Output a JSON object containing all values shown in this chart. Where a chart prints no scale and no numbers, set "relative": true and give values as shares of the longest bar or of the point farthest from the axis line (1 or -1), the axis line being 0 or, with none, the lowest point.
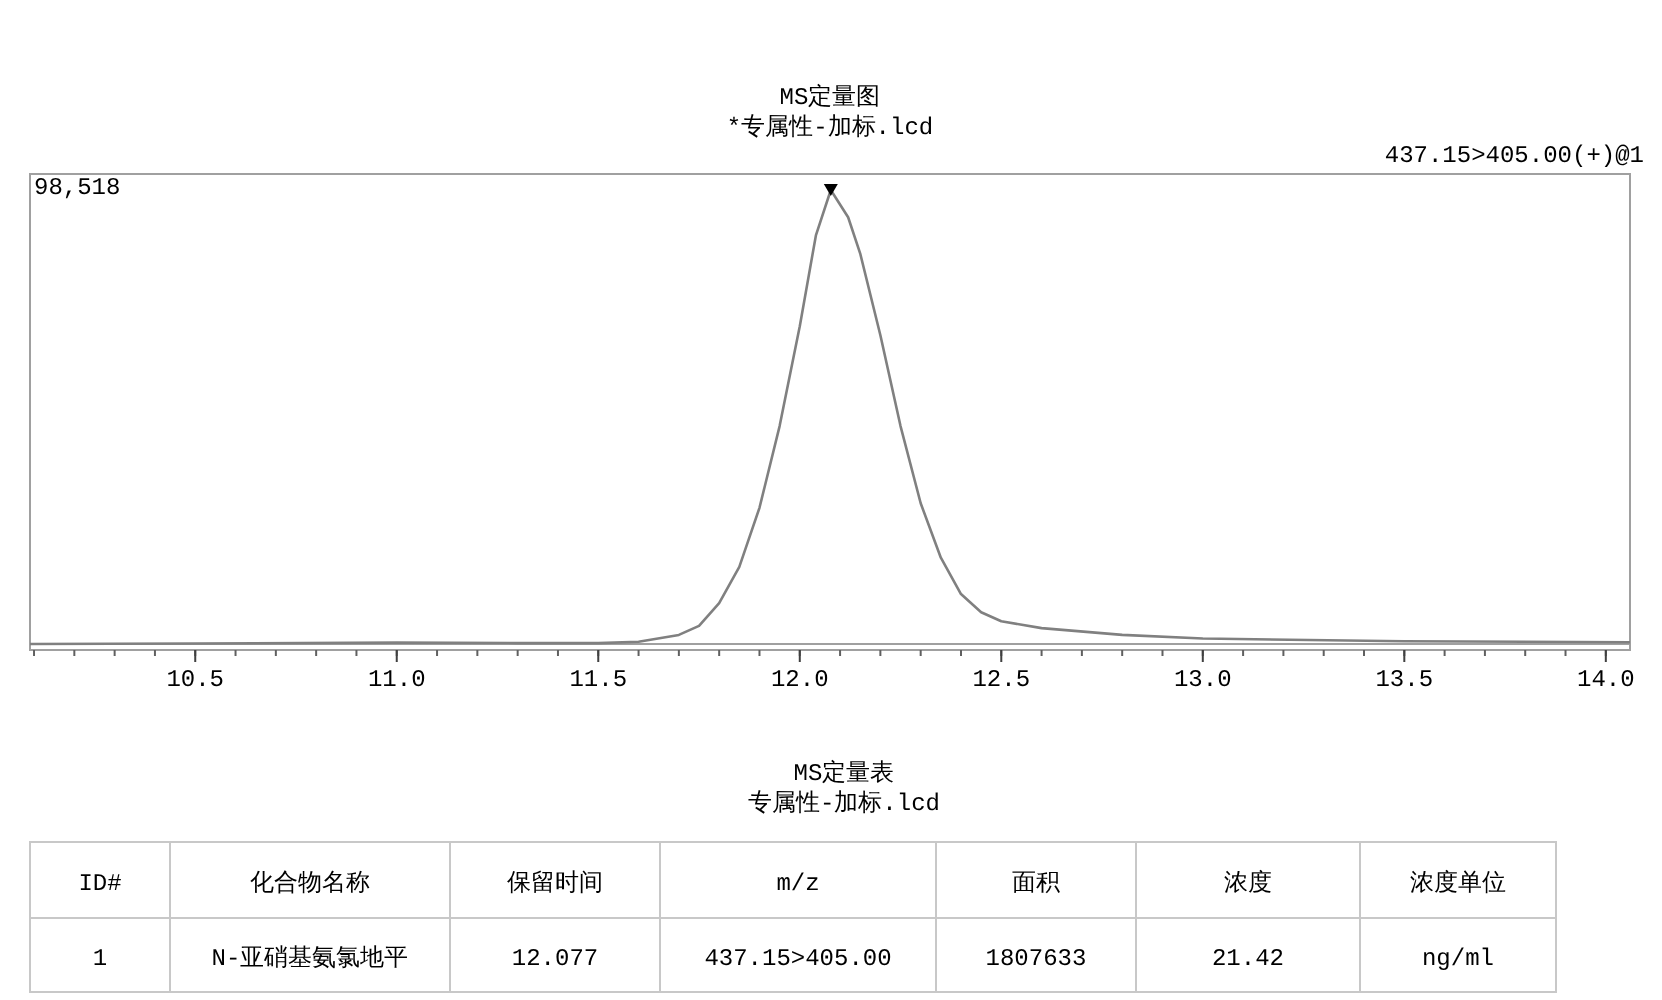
{
  "chart_data": [
    {
      "type": "line",
      "title": "MS定量图",
      "subtitle": "*专属性-加标.lcd",
      "relative": true,
      "xlim": [
        10.09,
        14.06
      ],
      "xticks": [
        10.5,
        {
          "value": 11,
          "label": "11.0"
        },
        11.5,
        {
          "value": 12,
          "label": "12.0"
        },
        12.5,
        {
          "value": 13,
          "label": "13.0"
        },
        13.5,
        {
          "value": 14,
          "label": "14.0"
        }
      ],
      "grid": false,
      "marker": "none",
      "line_style": "solid",
      "annotations": [
        "437.15>405.00(+)@1",
        "98,518"
      ],
      "ref_lines": [
        {
          "axis": "y",
          "value": 0,
          "color": "#a0a0a0"
        }
      ],
      "series": [
        {
          "color": "#808080",
          "x": [
            10.09,
            10.5,
            11.0,
            11.3,
            11.5,
            11.6,
            11.7,
            11.75,
            11.8,
            11.85,
            11.9,
            11.95,
            12.0,
            12.04,
            12.077,
            12.12,
            12.15,
            12.2,
            12.25,
            12.3,
            12.35,
            12.4,
            12.45,
            12.5,
            12.6,
            12.8,
            13.0,
            13.5,
            14.06
          ],
          "values": [
            0.0,
            0.001,
            0.003,
            0.002,
            0.002,
            0.005,
            0.02,
            0.04,
            0.09,
            0.17,
            0.3,
            0.48,
            0.7,
            0.9,
            1.0,
            0.94,
            0.86,
            0.68,
            0.48,
            0.31,
            0.19,
            0.11,
            0.07,
            0.05,
            0.035,
            0.02,
            0.012,
            0.006,
            0.004
          ]
        },
        {
          "type": "scatter",
          "marker": "triangle",
          "color": "#000000",
          "x": [
            12.077
          ],
          "values": [
            1.0
          ]
        }
      ]
    },
    {
      "type": "other",
      "title": "MS定量表",
      "subtitle": "专属性-加标.lcd",
      "annotations": [
        "ID#",
        "化合物名称",
        "保留时间",
        "m/z",
        "面积",
        "浓度",
        "浓度单位",
        "1",
        "N-亚硝基氨氯地平",
        "12.077",
        "437.15>405.00",
        "1807633",
        "21.42",
        "ng/ml"
      ]
    }
  ]
}
